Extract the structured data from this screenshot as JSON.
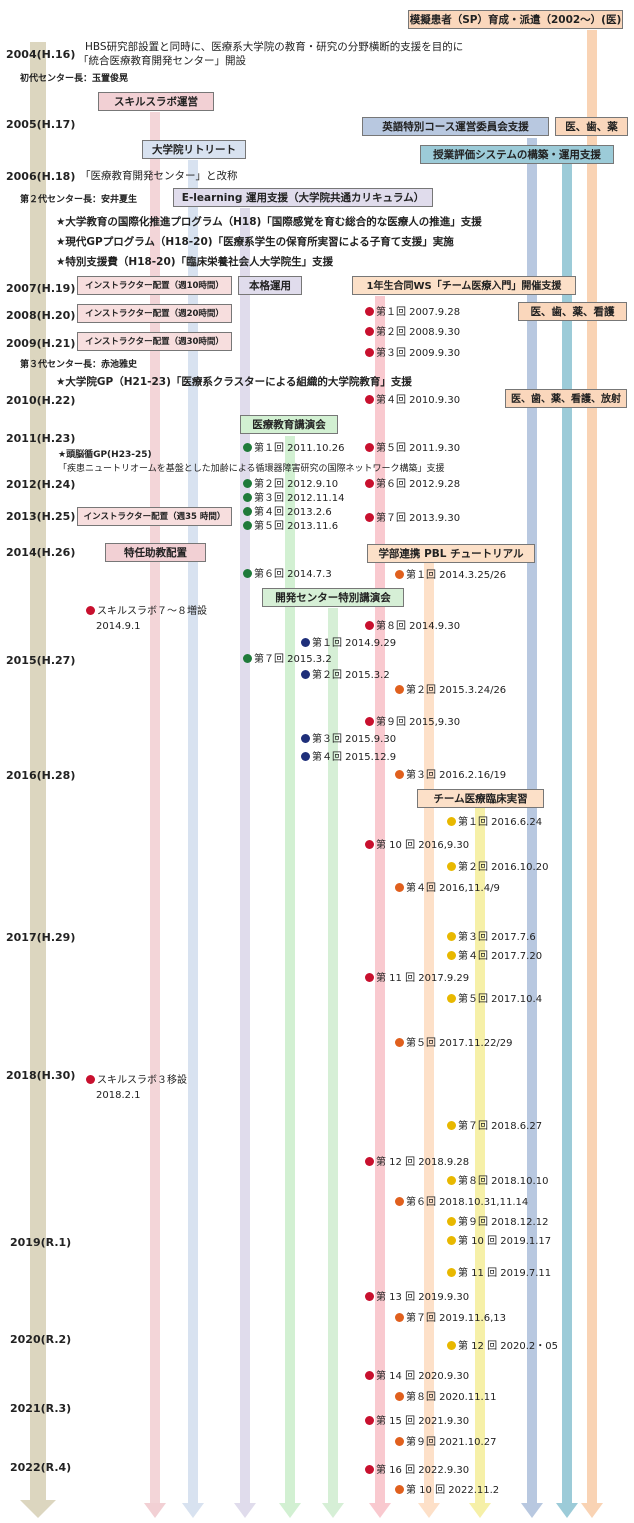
{
  "colors": {
    "timeline": "#dcd6bf",
    "skills": "#f2d0d4",
    "grad": "#d8e2f0",
    "eLearn": "#e0dcec",
    "medEdu": "#d2f0d2",
    "special": "#d6efd6",
    "team": "#f9c9cf",
    "pbl": "#fde0c8",
    "clinical": "#f6f0a8",
    "eng": "#b8c8e0",
    "eval": "#9ccbd8",
    "sp": "#f9d3b4",
    "red": "#c8102e",
    "green": "#1f7a3a",
    "navy": "#1f2f7a",
    "orange": "#e0601e",
    "yellow": "#e8b800"
  },
  "years": [
    "2004(H.16)",
    "2005(H.17)",
    "2006(H.18)",
    "2007(H.19)",
    "2008(H.20)",
    "2009(H.21)",
    "2010(H.22)",
    "2011(H.23)",
    "2012(H.24)",
    "2013(H.25)",
    "2014(H.26)",
    "2015(H.27)",
    "2016(H.28)",
    "2017(H.29)",
    "2018(H.30)",
    "2019(R.1)",
    "2020(R.2)",
    "2021(R.3)",
    "2022(R.4)"
  ],
  "texts": {
    "t2004a": "HBS研究部設置と同時に、医療系大学院の教育・研究の分野横断的支援を目的に",
    "t2004b": "「統合医療教育開発センター」開設",
    "dir1": "初代センター長：玉置俊晃",
    "t2006": "「医療教育開発センター」と改称",
    "dir2": "第２代センター長：安井夏生",
    "st1": "★大学教育の国際化推進プログラム（H18)「国際感覚を育む総合的な医療人の推進」支援",
    "st2": "★現代GPプログラム（H18-20)「医療系学生の保育所実習による子育て支援」実施",
    "st3": "★特別支援費（H18-20)「臨床栄養社会人大学院生」支援",
    "dir3": "第３代センター長：赤池雅史",
    "st4": "★大学院GP（H21-23)「医療系クラスターによる組織的大学院教育」支援",
    "st5": "★頭脳循GP(H23-25)",
    "st5b": "「疾患ニュートリオームを基盤とした加齢による循環器障害研究の国際ネットワーク構築」支援",
    "sk1": "スキルスラボ７～８増設",
    "sk1d": "2014.9.1",
    "sk2": "スキルスラボ３移設",
    "sk2d": "2018.2.1"
  },
  "labels": {
    "sp": "模擬患者（SP）育成・派遣（2002～）(医)",
    "skills": "スキルスラボ運営",
    "eng": "英語特別コース運営委員会支援",
    "ishiyaku": "医、歯、薬",
    "grad": "大学院リトリート",
    "eval": "授業評価システムの構築・運用支援",
    "elearn": "E-learning 運用支援（大学院共通カリキュラム）",
    "inst10": "インストラクター配置（週10時間）",
    "honkaku": "本格運用",
    "ws": "1年生合同WS「チーム医療入門」開催支援",
    "inst20": "インストラクター配置（週20時間）",
    "ishiyakukan": "医、歯、薬、看護",
    "inst30": "インストラクター配置（週30時間）",
    "isyhou": "医、歯、薬、看護、放射",
    "medEdu": "医療教育講演会",
    "inst35": "インストラクター配置（週35 時間）",
    "tokunin": "特任助教配置",
    "pbl": "学部連携 PBL チュートリアル",
    "special": "開発センター特別講演会",
    "clinical": "チーム医療臨床実習"
  },
  "events": {
    "red": [
      "第１回 2007.9.28",
      "第２回 2008.9.30",
      "第３回 2009.9.30",
      "第４回 2010.9.30",
      "第５回 2011.9.30",
      "第６回 2012.9.28",
      "第７回 2013.9.30",
      "第８回 2014.9.30",
      "第９回 2015,9.30",
      "第 10 回 2016,9.30",
      "第 11 回 2017.9.29",
      "第 12 回 2018.9.28",
      "第 13 回 2019.9.30",
      "第 14 回 2020.9.30",
      "第 15 回 2021.9.30",
      "第 16 回 2022.9.30"
    ],
    "green": [
      "第１回 2011.10.26",
      "第２回 2012.9.10",
      "第３回 2012.11.14",
      "第４回 2013.2.6",
      "第５回 2013.11.6",
      "第６回 2014.7.3",
      "第７回 2015.3.2"
    ],
    "navy": [
      "第１回 2014.9.29",
      "第２回 2015.3.2",
      "第３回 2015.9.30",
      "第４回 2015.12.9"
    ],
    "orange": [
      "第１回 2014.3.25/26",
      "第２回 2015.3.24/26",
      "第３回 2016.2.16/19",
      "第４回 2016,11.4/9",
      "第５回 2017.11.22/29",
      "第６回 2018.10.31,11.14",
      "第７回 2019.11.6,13",
      "第８回 2020.11.11",
      "第９回 2021.10.27",
      "第 10 回 2022.11.2"
    ],
    "yellow": [
      "第１回 2016.6.24",
      "第２回 2016.10.20",
      "第３回 2017.7.6",
      "第４回 2017.7.20",
      "第５回 2017.10.4",
      "第７回 2018.6.27",
      "第８回 2018.10.10",
      "第９回 2018.12.12",
      "第 10 回 2019.1.17",
      "第 11 回 2019.7.11",
      "第 12 回 2020.2・05"
    ]
  }
}
